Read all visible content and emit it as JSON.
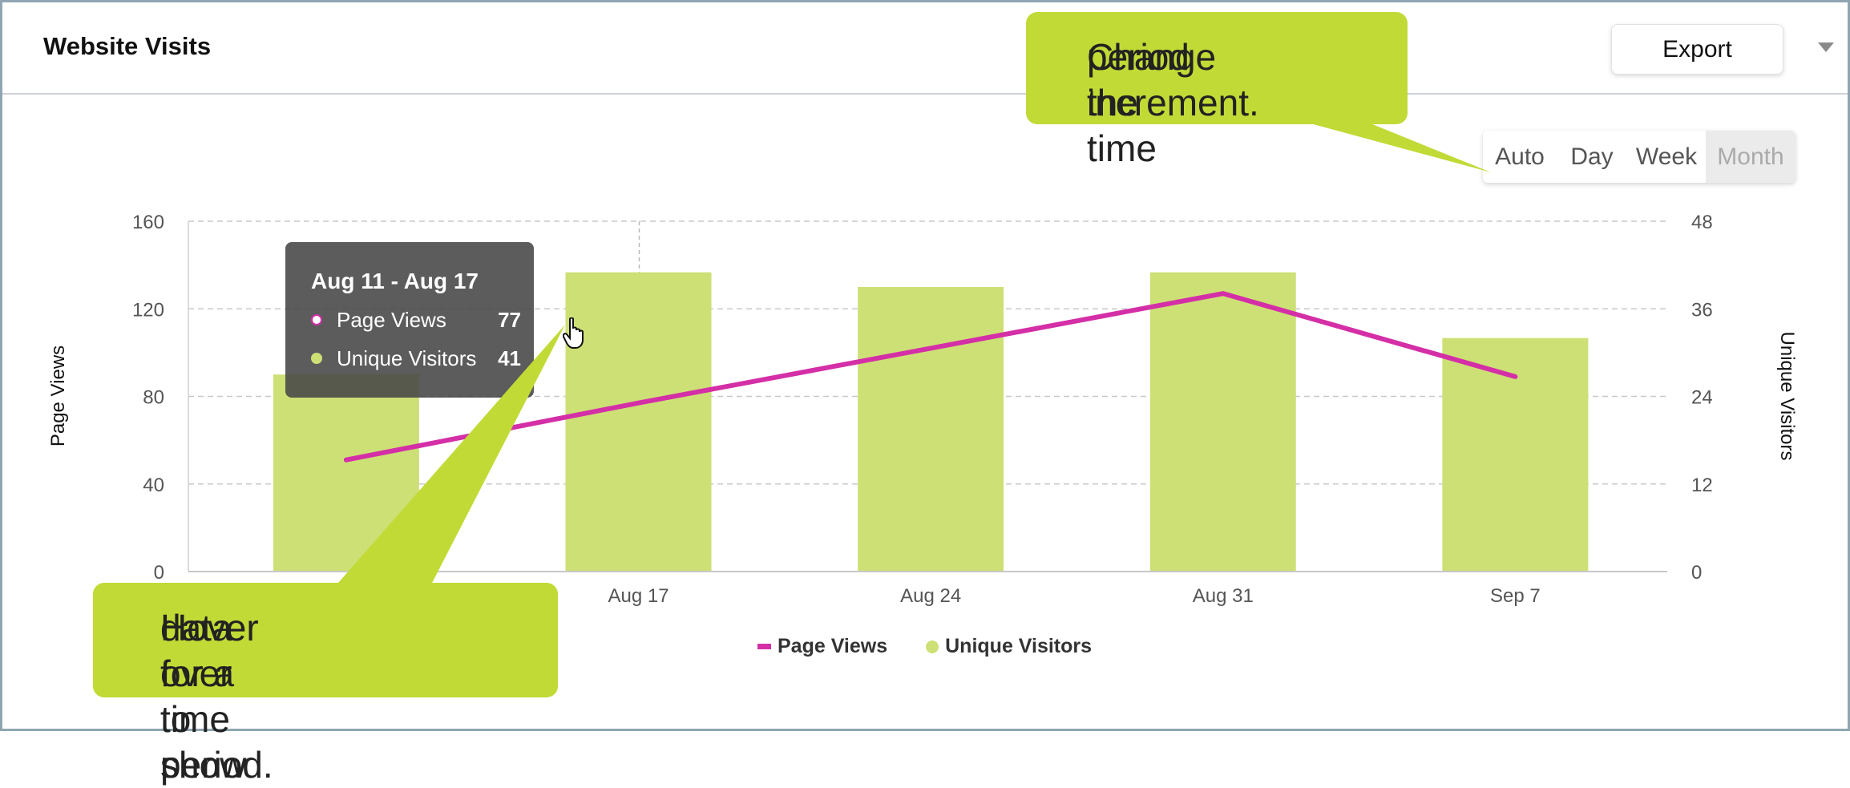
{
  "header": {
    "title": "Website Visits",
    "export_label": "Export"
  },
  "period_selector": {
    "options": [
      "Auto",
      "Day",
      "Week",
      "Month"
    ],
    "selected": "Month"
  },
  "tooltip": {
    "title": "Aug 11 - Aug 17",
    "rows": [
      {
        "label": "Page Views",
        "value": "77"
      },
      {
        "label": "Unique Visitors",
        "value": "41"
      }
    ]
  },
  "legend": {
    "items": [
      {
        "label": "Page Views",
        "color": "#d42fa7"
      },
      {
        "label": "Unique Visitors",
        "color": "#cde076"
      }
    ]
  },
  "callouts": {
    "top": [
      "Change the time",
      "period increment."
    ],
    "bottom": [
      "Hover over to show",
      "data for a time period."
    ]
  },
  "colors": {
    "page_views": "#d42fa7",
    "unique_visitors": "#cde076",
    "callout": "#c2da36"
  },
  "chart_data": {
    "type": "bar",
    "categories": [
      "",
      "Aug 17",
      "Aug 24",
      "Aug 31",
      "Sep 7"
    ],
    "series": [
      {
        "name": "Unique Visitors",
        "type": "bar",
        "axis": "right",
        "values": [
          27,
          41,
          39,
          41,
          32
        ]
      },
      {
        "name": "Page Views",
        "type": "line",
        "axis": "left",
        "values": [
          51,
          77,
          102,
          127,
          89
        ]
      }
    ],
    "xlabel": "",
    "ylabel": "Page Views",
    "ylabel_right": "Unique Visitors",
    "ylim": [
      0,
      160
    ],
    "ylim_right": [
      0,
      48
    ],
    "yticks": [
      0,
      40,
      80,
      120,
      160
    ],
    "yticks_right": [
      0,
      12,
      24,
      36,
      48
    ],
    "grid": true,
    "legend_position": "bottom"
  }
}
